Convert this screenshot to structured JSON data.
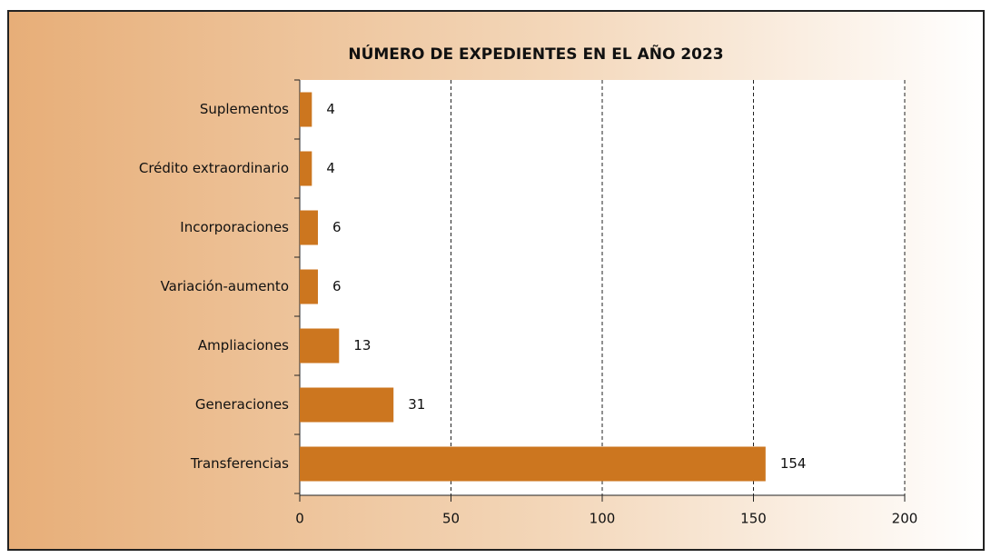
{
  "chart_data": {
    "type": "bar",
    "orientation": "horizontal",
    "title": "NÚMERO DE EXPEDIENTES EN EL AÑO 2023",
    "categories": [
      "Suplementos",
      "Crédito extraordinario",
      "Incorporaciones",
      "Variación-aumento",
      "Ampliaciones",
      "Generaciones",
      "Transferencias"
    ],
    "values": [
      4,
      4,
      6,
      6,
      13,
      31,
      154
    ],
    "color": "#cc761f",
    "xlim": [
      0,
      200
    ],
    "xticks": [
      0,
      50,
      100,
      150,
      200
    ],
    "grid": true
  }
}
